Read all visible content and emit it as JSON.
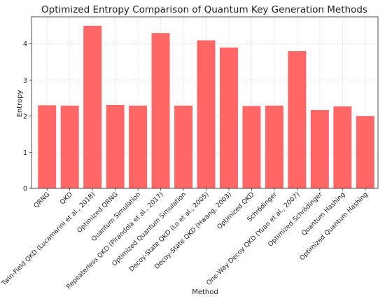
{
  "chart_data": {
    "type": "bar",
    "title": "Optimized Entropy Comparison of Quantum Key Generation Methods",
    "xlabel": "Method",
    "ylabel": "Entropy",
    "ylim": [
      0,
      4.75
    ],
    "yticks": [
      0,
      1,
      2,
      3,
      4
    ],
    "grid": true,
    "bar_color": "#ff6666",
    "categories": [
      "QRNG",
      "QKD",
      "Twin-Field QKD (Lucamarini et al., 2018)",
      "Optimized QRNG",
      "Quantum Simulation",
      "Repeaterless QKD (Pirandola et al., 2017)",
      "Optimized Quantum Simulation",
      "Decoy-State QKD (Lo et al., 2005)",
      "Decoy-State QKD (Hwang, 2003)",
      "Optimized QKD",
      "Schrödinger",
      "One-Way Decoy QKD (Yuan et al., 2007)",
      "Optimized Schrödinger",
      "Quantum Hashing",
      "Optimized Quantum Hashing"
    ],
    "values": [
      2.3,
      2.29,
      4.5,
      2.31,
      2.29,
      4.3,
      2.29,
      4.1,
      3.9,
      2.28,
      2.29,
      3.8,
      2.17,
      2.27,
      2.0
    ]
  }
}
